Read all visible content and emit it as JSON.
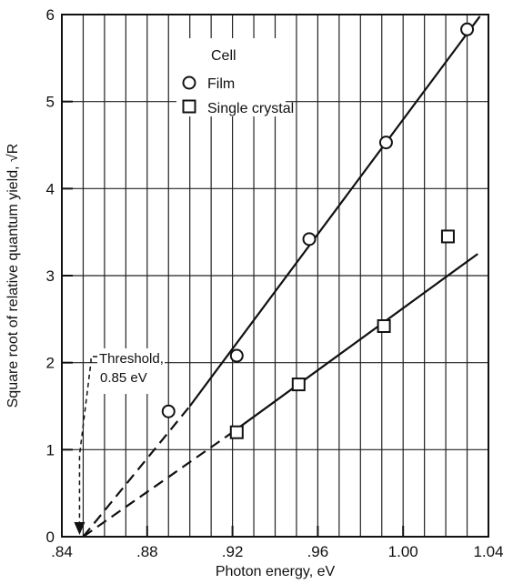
{
  "chart_data": {
    "type": "scatter",
    "xlabel": "Photon energy, eV",
    "ylabel": "Square root of relative quantum yield, √R",
    "xlim": [
      0.84,
      1.04
    ],
    "ylim": [
      0,
      6
    ],
    "x_ticks": [
      0.84,
      0.88,
      0.92,
      0.96,
      1.0,
      1.04
    ],
    "x_tick_labels": [
      ".84",
      ".88",
      ".92",
      ".96",
      "1.00",
      "1.04"
    ],
    "y_ticks": [
      0,
      1,
      2,
      3,
      4,
      5,
      6
    ],
    "y_tick_labels": [
      "0",
      "1",
      "2",
      "3",
      "4",
      "5",
      "6"
    ],
    "grid": true,
    "legend": {
      "title": "Cell",
      "placement": "top-center"
    },
    "series": [
      {
        "name": "Film",
        "marker": "circle",
        "points": [
          {
            "x": 0.89,
            "y": 1.44
          },
          {
            "x": 0.922,
            "y": 2.08
          },
          {
            "x": 0.956,
            "y": 3.42
          },
          {
            "x": 0.992,
            "y": 4.53
          },
          {
            "x": 1.03,
            "y": 5.83
          }
        ],
        "fit_line": {
          "dashed_from": [
            0.85,
            0.0
          ],
          "solid_from": [
            0.9,
            1.5
          ],
          "to": [
            1.036,
            5.98
          ]
        }
      },
      {
        "name": "Single crystal",
        "marker": "square",
        "points": [
          {
            "x": 0.922,
            "y": 1.2
          },
          {
            "x": 0.951,
            "y": 1.75
          },
          {
            "x": 0.991,
            "y": 2.42
          },
          {
            "x": 1.021,
            "y": 3.45
          }
        ],
        "fit_line": {
          "dashed_from": [
            0.85,
            0.0
          ],
          "solid_from": [
            0.92,
            1.2
          ],
          "to": [
            1.035,
            3.25
          ]
        }
      }
    ],
    "annotations": [
      {
        "text_lines": [
          "Threshold,",
          "0.85 eV"
        ],
        "x": 0.85,
        "y": 0
      }
    ]
  }
}
